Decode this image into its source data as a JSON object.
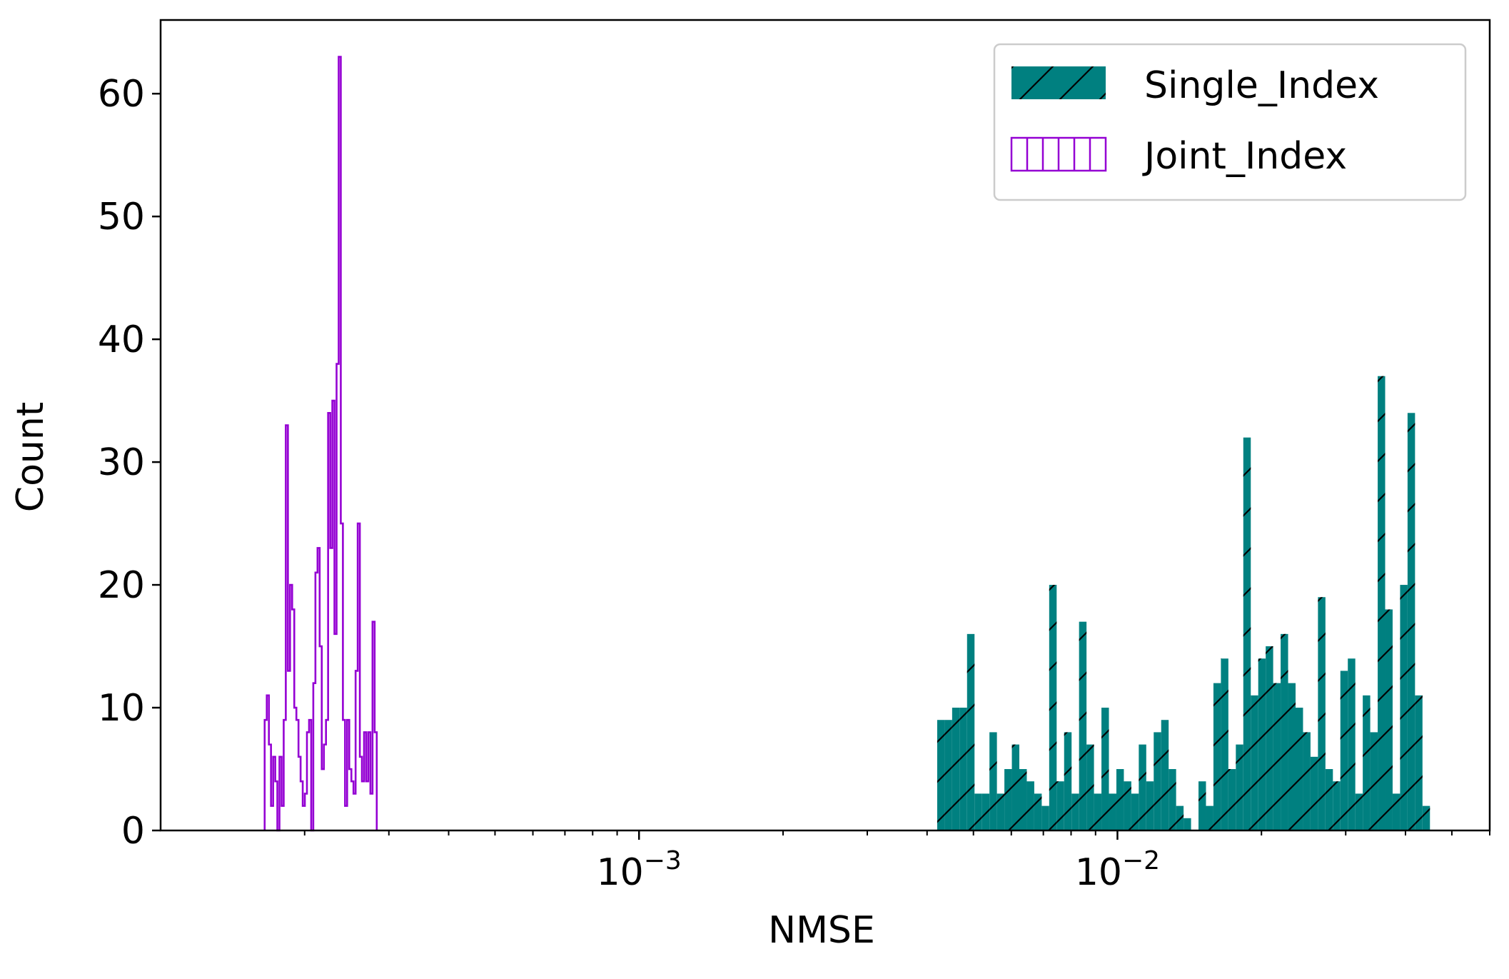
{
  "chart_data": {
    "type": "histogram",
    "title": "",
    "xlabel": "NMSE",
    "ylabel": "Count",
    "xscale": "log",
    "xlim": [
      0.0001,
      0.06
    ],
    "ylim": [
      0,
      66
    ],
    "x_tick_labels": [
      {
        "base": "10",
        "exp": "−3",
        "value": 0.001
      },
      {
        "base": "10",
        "exp": "−2",
        "value": 0.01
      }
    ],
    "y_ticks": [
      {
        "value": 0,
        "label": "0"
      },
      {
        "value": 10,
        "label": "10"
      },
      {
        "value": 20,
        "label": "20"
      },
      {
        "value": 30,
        "label": "30"
      },
      {
        "value": 40,
        "label": "40"
      },
      {
        "value": 50,
        "label": "50"
      },
      {
        "value": 60,
        "label": "60"
      }
    ],
    "grid": false,
    "legend_position": "top-right",
    "series": [
      {
        "name": "Single_Index",
        "style": "filled-hatched",
        "color": "#008080",
        "hatch": "/",
        "bin_range": [
          0.0042,
          0.045
        ],
        "counts": [
          9,
          9,
          10,
          10,
          16,
          3,
          3,
          8,
          3,
          5,
          7,
          5,
          4,
          3,
          2,
          20,
          4,
          8,
          3,
          17,
          7,
          3,
          10,
          3,
          5,
          4,
          3,
          7,
          4,
          8,
          9,
          5,
          2,
          1,
          0,
          4,
          2,
          12,
          14,
          5,
          7,
          32,
          11,
          14,
          15,
          12,
          16,
          12,
          10,
          8,
          6,
          19,
          5,
          4,
          13,
          14,
          3,
          11,
          8,
          37,
          18,
          3,
          20,
          34,
          11,
          2
        ]
      },
      {
        "name": "Joint_Index",
        "style": "step-outline",
        "color": "#9400d3",
        "bin_range": [
          0.000165,
          0.000283
        ],
        "counts": [
          9,
          11,
          7,
          2,
          6,
          4,
          0,
          6,
          2,
          9,
          33,
          13,
          20,
          18,
          10,
          9,
          6,
          4,
          2,
          3,
          8,
          9,
          0,
          12,
          21,
          23,
          15,
          5,
          7,
          9,
          34,
          23,
          35,
          16,
          38,
          63,
          25,
          9,
          2,
          9,
          5,
          4,
          3,
          13,
          25,
          6,
          4,
          8,
          4,
          8,
          3,
          17,
          8
        ]
      }
    ]
  }
}
